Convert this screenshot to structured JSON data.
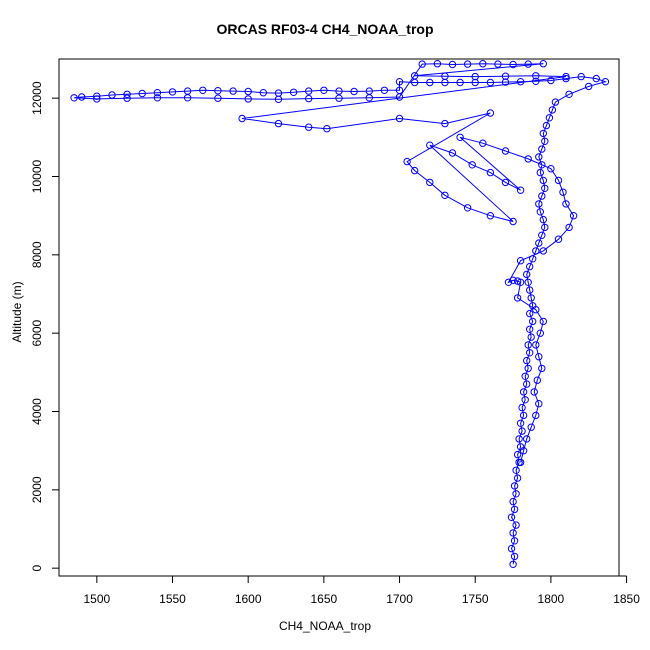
{
  "chart_data": {
    "type": "scatter",
    "title": "ORCAS RF03-4 CH4_NOAA_trop",
    "xlabel": "CH4_NOAA_trop",
    "ylabel": "Altitude (m)",
    "xlim": [
      1475,
      1845
    ],
    "ylim": [
      -200,
      13000
    ],
    "x_ticks": [
      1500,
      1550,
      1600,
      1650,
      1700,
      1750,
      1800,
      1850
    ],
    "y_ticks": [
      0,
      2000,
      4000,
      6000,
      8000,
      10000,
      12000
    ],
    "grid": false,
    "marker": "open-circle",
    "line_connected": true,
    "color": "#0000ff",
    "series": [
      {
        "points": [
          [
            1775,
            100
          ],
          [
            1776,
            300
          ],
          [
            1774,
            500
          ],
          [
            1776,
            700
          ],
          [
            1775,
            900
          ],
          [
            1777,
            1100
          ],
          [
            1774,
            1300
          ],
          [
            1776,
            1500
          ],
          [
            1775,
            1700
          ],
          [
            1777,
            1900
          ],
          [
            1776,
            2100
          ],
          [
            1778,
            2300
          ],
          [
            1777,
            2500
          ],
          [
            1779,
            2700
          ],
          [
            1778,
            2900
          ],
          [
            1780,
            3100
          ],
          [
            1779,
            3300
          ],
          [
            1781,
            3500
          ],
          [
            1780,
            3700
          ],
          [
            1782,
            3900
          ],
          [
            1781,
            4100
          ],
          [
            1783,
            4300
          ],
          [
            1782,
            4500
          ],
          [
            1784,
            4700
          ],
          [
            1783,
            4900
          ],
          [
            1785,
            5100
          ],
          [
            1784,
            5300
          ],
          [
            1786,
            5500
          ],
          [
            1785,
            5700
          ],
          [
            1787,
            5900
          ],
          [
            1786,
            6100
          ],
          [
            1788,
            6300
          ],
          [
            1786,
            6500
          ],
          [
            1788,
            6700
          ],
          [
            1787,
            6900
          ],
          [
            1786,
            7100
          ],
          [
            1785,
            7300
          ],
          [
            1784,
            7500
          ],
          [
            1786,
            7700
          ],
          [
            1788,
            7900
          ],
          [
            1790,
            8100
          ],
          [
            1792,
            8300
          ],
          [
            1794,
            8500
          ],
          [
            1796,
            8700
          ],
          [
            1795,
            8900
          ],
          [
            1793,
            9100
          ],
          [
            1792,
            9300
          ],
          [
            1794,
            9500
          ],
          [
            1796,
            9700
          ],
          [
            1795,
            9900
          ],
          [
            1793,
            10100
          ],
          [
            1794,
            10300
          ],
          [
            1792,
            10500
          ],
          [
            1794,
            10700
          ],
          [
            1796,
            10900
          ],
          [
            1795,
            11100
          ],
          [
            1797,
            11300
          ],
          [
            1799,
            11500
          ],
          [
            1801,
            11700
          ],
          [
            1803,
            11900
          ],
          [
            1812,
            12100
          ],
          [
            1825,
            12300
          ],
          [
            1836,
            12420
          ],
          [
            1830,
            12500
          ],
          [
            1820,
            12550
          ],
          [
            1810,
            12500
          ],
          [
            1800,
            12450
          ],
          [
            1790,
            12430
          ],
          [
            1780,
            12420
          ],
          [
            1770,
            12410
          ],
          [
            1760,
            12400
          ],
          [
            1750,
            12400
          ],
          [
            1740,
            12400
          ],
          [
            1730,
            12400
          ],
          [
            1720,
            12400
          ],
          [
            1710,
            12400
          ],
          [
            1700,
            12420
          ],
          [
            1700,
            12200
          ],
          [
            1690,
            12200
          ],
          [
            1680,
            12180
          ],
          [
            1670,
            12170
          ],
          [
            1660,
            12180
          ],
          [
            1650,
            12200
          ],
          [
            1640,
            12180
          ],
          [
            1630,
            12150
          ],
          [
            1620,
            12130
          ],
          [
            1610,
            12140
          ],
          [
            1600,
            12170
          ],
          [
            1590,
            12180
          ],
          [
            1580,
            12190
          ],
          [
            1570,
            12200
          ],
          [
            1560,
            12180
          ],
          [
            1550,
            12160
          ],
          [
            1540,
            12140
          ],
          [
            1530,
            12120
          ],
          [
            1520,
            12100
          ],
          [
            1510,
            12080
          ],
          [
            1500,
            12050
          ],
          [
            1490,
            12030
          ],
          [
            1485,
            12010
          ],
          [
            1500,
            11980
          ],
          [
            1520,
            12000
          ],
          [
            1540,
            12010
          ],
          [
            1560,
            12010
          ],
          [
            1580,
            12000
          ],
          [
            1600,
            11980
          ],
          [
            1620,
            11970
          ],
          [
            1640,
            11990
          ],
          [
            1660,
            12000
          ],
          [
            1680,
            12010
          ],
          [
            1700,
            12030
          ],
          [
            1715,
            12870
          ],
          [
            1725,
            12880
          ],
          [
            1735,
            12860
          ],
          [
            1745,
            12870
          ],
          [
            1755,
            12880
          ],
          [
            1765,
            12870
          ],
          [
            1775,
            12860
          ],
          [
            1785,
            12870
          ],
          [
            1795,
            12880
          ],
          [
            1710,
            12570
          ],
          [
            1730,
            12560
          ],
          [
            1750,
            12550
          ],
          [
            1770,
            12560
          ],
          [
            1790,
            12570
          ],
          [
            1810,
            12550
          ],
          [
            1596,
            11480
          ],
          [
            1620,
            11350
          ],
          [
            1640,
            11260
          ],
          [
            1652,
            11220
          ],
          [
            1700,
            11480
          ],
          [
            1730,
            11350
          ],
          [
            1760,
            11620
          ],
          [
            1705,
            10380
          ],
          [
            1710,
            10150
          ],
          [
            1720,
            9850
          ],
          [
            1730,
            9520
          ],
          [
            1745,
            9200
          ],
          [
            1760,
            9000
          ],
          [
            1775,
            8850
          ],
          [
            1720,
            10800
          ],
          [
            1735,
            10600
          ],
          [
            1748,
            10300
          ],
          [
            1760,
            10100
          ],
          [
            1770,
            9850
          ],
          [
            1780,
            9650
          ],
          [
            1740,
            11000
          ],
          [
            1755,
            10850
          ],
          [
            1770,
            10650
          ],
          [
            1785,
            10450
          ],
          [
            1800,
            10200
          ],
          [
            1805,
            9900
          ],
          [
            1808,
            9600
          ],
          [
            1810,
            9300
          ],
          [
            1815,
            9000
          ],
          [
            1812,
            8700
          ],
          [
            1805,
            8400
          ],
          [
            1795,
            8100
          ],
          [
            1780,
            7850
          ],
          [
            1772,
            7300
          ],
          [
            1775,
            7350
          ],
          [
            1778,
            7330
          ],
          [
            1780,
            7300
          ],
          [
            1778,
            6900
          ],
          [
            1790,
            6600
          ],
          [
            1795,
            6300
          ],
          [
            1793,
            6000
          ],
          [
            1790,
            5700
          ],
          [
            1792,
            5400
          ],
          [
            1794,
            5100
          ],
          [
            1791,
            4800
          ],
          [
            1789,
            4500
          ],
          [
            1792,
            4200
          ],
          [
            1790,
            3900
          ],
          [
            1787,
            3600
          ],
          [
            1784,
            3300
          ],
          [
            1782,
            3000
          ],
          [
            1780,
            2700
          ]
        ]
      }
    ]
  }
}
